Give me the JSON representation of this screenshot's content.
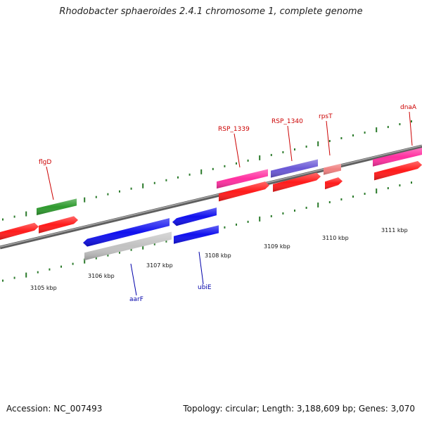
{
  "title": "Rhodobacter sphaeroides 2.4.1 chromosome 1, complete genome",
  "footer": {
    "accession": "Accession: NC_007493",
    "summary": "Topology: circular; Length: 3,188,609 bp; Genes: 3,070"
  },
  "scale_labels": [
    "3105 kbp",
    "3106 kbp",
    "3107 kbp",
    "3108 kbp",
    "3109 kbp",
    "3110 kbp",
    "3111 kbp"
  ],
  "gene_labels": [
    {
      "name": "flgD",
      "color": "#cc0000"
    },
    {
      "name": "RSP_1339",
      "color": "#cc0000"
    },
    {
      "name": "RSP_1340",
      "color": "#cc0000"
    },
    {
      "name": "rpsT",
      "color": "#cc0000"
    },
    {
      "name": "dnaA",
      "color": "#cc0000"
    },
    {
      "name": "aarF",
      "color": "#0000aa"
    },
    {
      "name": "ubiE",
      "color": "#0000aa"
    }
  ],
  "colors": {
    "red": "#ff1a1a",
    "pink": "#ff2fa0",
    "purple": "#6a58d6",
    "salmon": "#f08080",
    "green": "#2e9a2e",
    "blue": "#1010ee",
    "gray": "#c2c2c2",
    "backbone": "#7a7a7a",
    "tick": "#2a7a2a"
  }
}
